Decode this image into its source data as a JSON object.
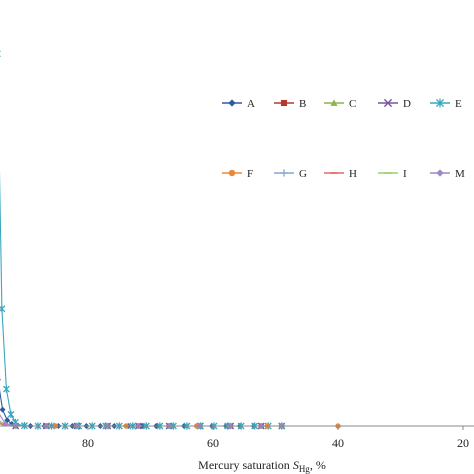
{
  "chart_data": {
    "type": "line",
    "title": "",
    "xlabel": "Mercury saturation ",
    "xlabel_symbol": "S",
    "xlabel_subscript": "Hg",
    "xlabel_unit": ", %",
    "ylabel": "",
    "x_reversed": true,
    "xlim": [
      97,
      17
    ],
    "ylim": [
      0,
      100
    ],
    "grid": false,
    "legend_position": "right",
    "x_ticks": [
      80,
      60,
      40,
      20
    ],
    "x_tick_labels": [
      "80",
      "60",
      "40",
      "20"
    ],
    "series": [
      {
        "name": "A",
        "color": "#2e5c9e",
        "marker": "diamond",
        "x_start": 95.9,
        "x_end": 49.0,
        "decay": 1.4,
        "y0": 94,
        "points": 64
      },
      {
        "name": "B",
        "color": "#b03a2e",
        "marker": "square",
        "x_start": 96.5,
        "x_end": 49.0,
        "decay": 1.0,
        "y0": 5,
        "points": 30
      },
      {
        "name": "C",
        "color": "#8fb24a",
        "marker": "triangle",
        "x_start": 96.5,
        "x_end": 49.0,
        "decay": 1.5,
        "y0": 16,
        "points": 30
      },
      {
        "name": "D",
        "color": "#7a55a0",
        "marker": "x",
        "x_start": 96.5,
        "x_end": 49.0,
        "decay": 1.6,
        "y0": 30,
        "points": 30
      },
      {
        "name": "E",
        "color": "#3aa7bd",
        "marker": "star",
        "x_start": 94.5,
        "x_end": 49.0,
        "decay": 1.6,
        "y0": 94,
        "points": 64
      },
      {
        "name": "F",
        "color": "#e8893a",
        "marker": "circle",
        "x_start": 96.5,
        "x_end": 40.0,
        "decay": 1.0,
        "y0": 3,
        "points": 16
      },
      {
        "name": "G",
        "color": "#8ca4cf",
        "marker": "plus",
        "x_start": 96.5,
        "x_end": 49.0,
        "decay": 1.2,
        "y0": 10,
        "points": 30
      },
      {
        "name": "H",
        "color": "#e06a6a",
        "marker": "dash",
        "x_start": 96.5,
        "x_end": 49.0,
        "decay": 1.3,
        "y0": 8,
        "points": 30
      },
      {
        "name": "I",
        "color": "#9ccf6a",
        "marker": "dash",
        "x_start": 96.5,
        "x_end": 49.0,
        "decay": 1.4,
        "y0": 20,
        "points": 30
      },
      {
        "name": "M",
        "color": "#9d88c4",
        "marker": "diamond",
        "x_start": 96.5,
        "x_end": 49.0,
        "decay": 1.3,
        "y0": 40,
        "points": 30
      }
    ]
  }
}
